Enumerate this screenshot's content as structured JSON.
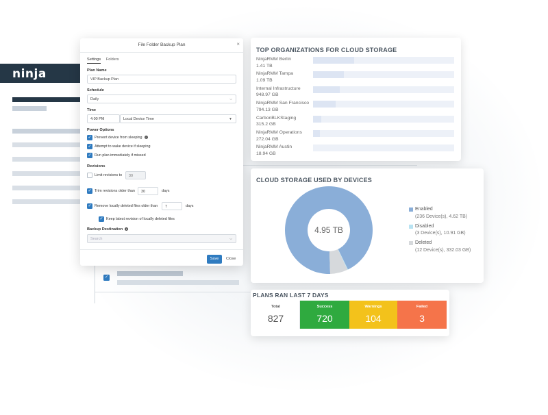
{
  "brand": {
    "logo_text": "ninja"
  },
  "modal": {
    "title": "File Folder Backup Plan",
    "close_glyph": "×",
    "tabs": [
      {
        "label": "Settings",
        "active": true
      },
      {
        "label": "Folders",
        "active": false
      }
    ],
    "plan_name_label": "Plan Name",
    "plan_name_value": "VIP Backup Plan",
    "schedule_label": "Schedule",
    "schedule_value": "Daily",
    "time_label": "Time",
    "time_value": "4:00 PM",
    "timezone_value": "Local Device Time",
    "power_label": "Power Options",
    "power_options": [
      {
        "label": "Prevent device from sleeping",
        "checked": true
      },
      {
        "label": "Attempt to wake device if sleeping",
        "checked": true
      },
      {
        "label": "Run plan immediately if missed",
        "checked": true
      }
    ],
    "revisions_label": "Revisions",
    "limit_revisions_label": "Limit revisions to",
    "limit_revisions_value": "30",
    "trim_label": "Trim revisions older than",
    "trim_value": "30",
    "trim_unit": "days",
    "remove_label": "Remove locally deleted files older than",
    "remove_value": "7",
    "remove_unit": "days",
    "keep_latest_label": "Keep latest revision of locally deleted files",
    "destination_label": "Backup Destination",
    "search_placeholder": "Search",
    "save_label": "Save",
    "close_label": "Close"
  },
  "top_orgs": {
    "title": "TOP ORGANIZATIONS FOR CLOUD STORAGE",
    "items": [
      {
        "name": "NinjaRMM Berlin",
        "size": "1.41 TB",
        "share": 0.29
      },
      {
        "name": "NinjaRMM Tampa",
        "size": "1.09 TB",
        "share": 0.22
      },
      {
        "name": "Internal Infrastructure",
        "size": "948.97 GB",
        "share": 0.19
      },
      {
        "name": "NinjaRMM San Francisco",
        "size": "794.13 GB",
        "share": 0.16
      },
      {
        "name": "CarbonBLKStaging",
        "size": "315.2 GB",
        "share": 0.06
      },
      {
        "name": "NinjaRMM Operations",
        "size": "272.04 GB",
        "share": 0.05
      },
      {
        "name": "NinjaRMM Austin",
        "size": "18.94 GB",
        "share": 0.0
      }
    ]
  },
  "cloud_storage": {
    "title": "CLOUD STORAGE USED BY DEVICES",
    "total": "4.95 TB",
    "legend": [
      {
        "label": "Enabled",
        "detail": "(236 Device(s), 4.62 TB)",
        "color": "#8aaed8",
        "fraction": 0.933
      },
      {
        "label": "Disabled",
        "detail": "(3 Device(s), 10.91 GB)",
        "color": "#b9e3f2",
        "fraction": 0.002
      },
      {
        "label": "Deleted",
        "detail": "(12 Device(s), 332.03 GB)",
        "color": "#d6d9dc",
        "fraction": 0.065
      }
    ]
  },
  "plans": {
    "title": "PLANS RAN LAST 7 DAYS",
    "stats": [
      {
        "label": "Total",
        "value": "827",
        "bg": "#ffffff",
        "fg": "#555555"
      },
      {
        "label": "Success",
        "value": "720",
        "bg": "#2faa3f",
        "fg": "#ffffff"
      },
      {
        "label": "Warnings",
        "value": "104",
        "bg": "#f3c21b",
        "fg": "#ffffff"
      },
      {
        "label": "Failed",
        "value": "3",
        "bg": "#f5744a",
        "fg": "#ffffff"
      }
    ]
  },
  "colors": {
    "accent": "#2f7bc0",
    "header_dark": "#253746"
  }
}
